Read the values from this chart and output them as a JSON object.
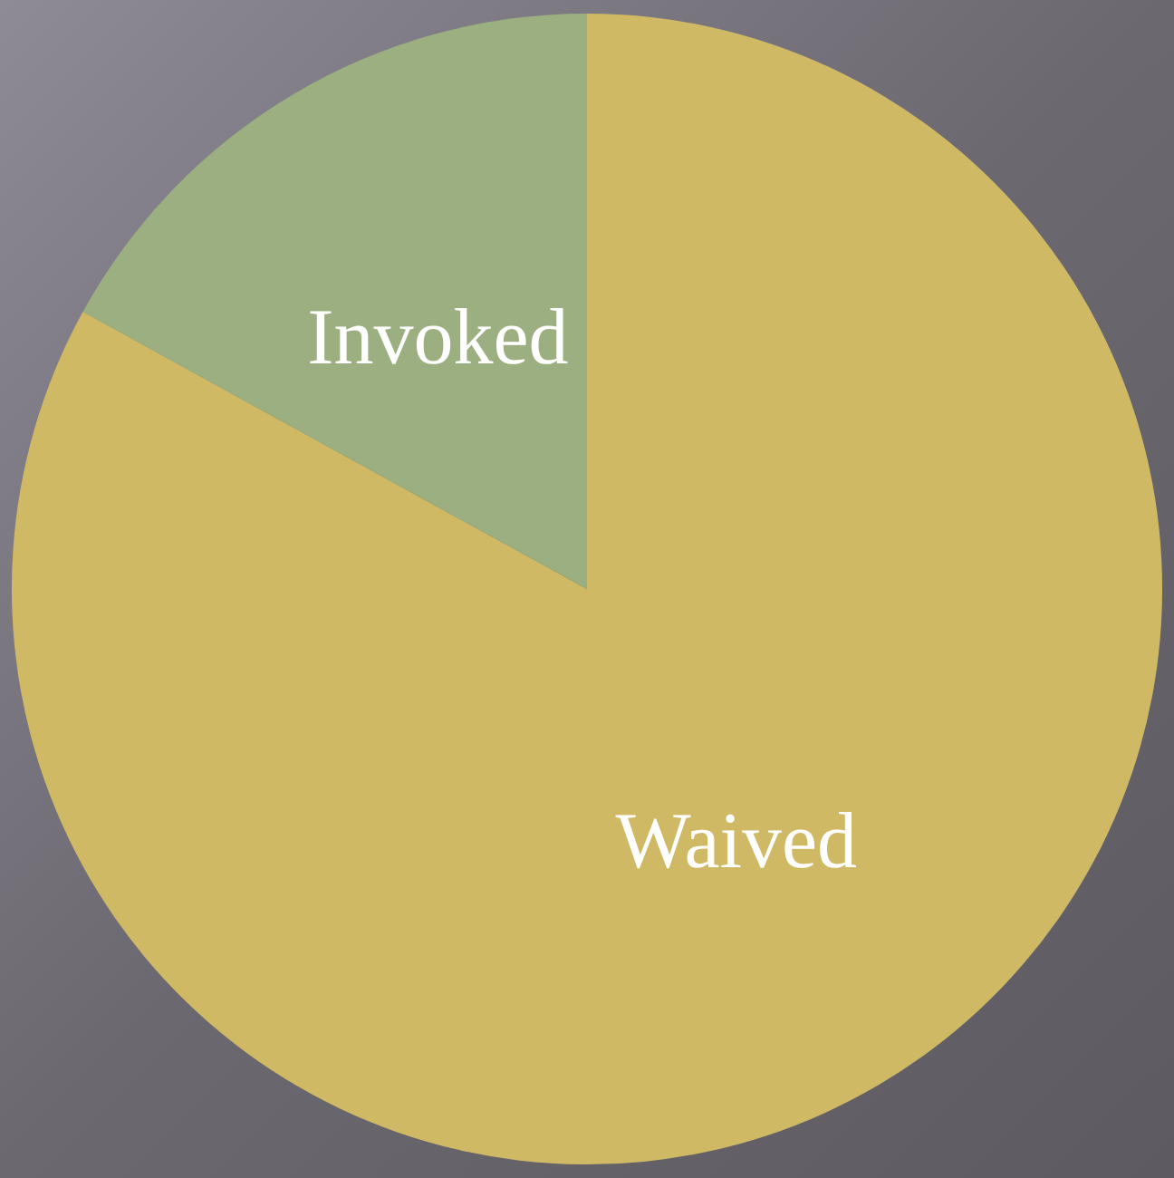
{
  "chart_data": {
    "type": "pie",
    "categories": [
      "Waived",
      "Invoked"
    ],
    "values": [
      83,
      17
    ],
    "colors": [
      "#cfb965",
      "#9caf80"
    ]
  }
}
